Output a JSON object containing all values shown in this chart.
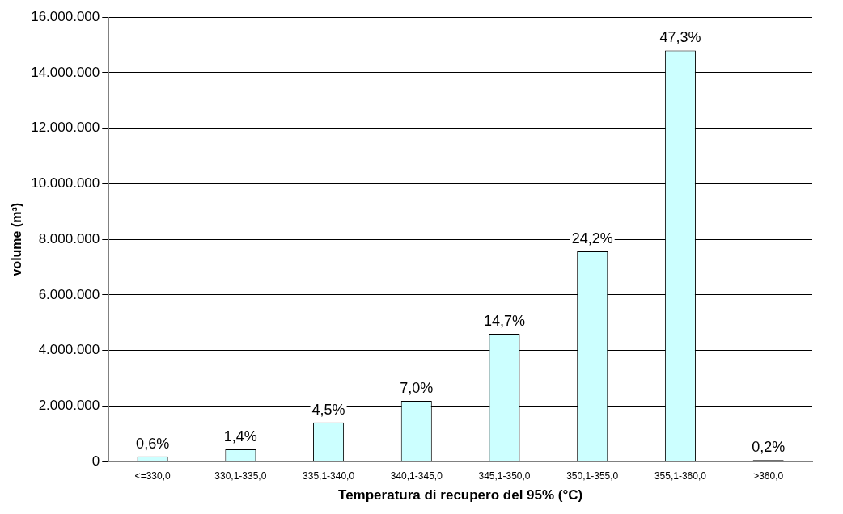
{
  "chart_data": {
    "type": "bar",
    "xlabel": "Temperatura di recupero del 95% (°C)",
    "ylabel": "volume (m³)",
    "categories": [
      "<=330,0",
      "330,1-335,0",
      "335,1-340,0",
      "340,1-345,0",
      "345,1-350,0",
      "350,1-355,0",
      "355,1-360,0",
      ">360,0"
    ],
    "values": [
      190000,
      440000,
      1410000,
      2190000,
      4600000,
      7570000,
      14800000,
      60000
    ],
    "annotations": [
      {
        "text": "0,6%",
        "x": "<=330,0",
        "y": 190000
      },
      {
        "text": "1,4%",
        "x": "330,1-335,0",
        "y": 440000
      },
      {
        "text": "4,5%",
        "x": "335,1-340,0",
        "y": 1410000
      },
      {
        "text": "7,0%",
        "x": "340,1-345,0",
        "y": 2190000
      },
      {
        "text": "14,7%",
        "x": "345,1-350,0",
        "y": 4600000
      },
      {
        "text": "24,2%",
        "x": "350,1-355,0",
        "y": 7570000
      },
      {
        "text": "47,3%",
        "x": "355,1-360,0",
        "y": 14800000
      },
      {
        "text": "0,2%",
        "x": ">360,0",
        "y": 60000
      }
    ],
    "color": "#ccffff",
    "ylim": [
      0,
      16000000
    ],
    "yticks": [
      {
        "value": 0,
        "label": "0"
      },
      {
        "value": 2000000,
        "label": "2.000.000"
      },
      {
        "value": 4000000,
        "label": "4.000.000"
      },
      {
        "value": 6000000,
        "label": "6.000.000"
      },
      {
        "value": 8000000,
        "label": "8.000.000"
      },
      {
        "value": 10000000,
        "label": "10.000.000"
      },
      {
        "value": 12000000,
        "label": "12.000.000"
      },
      {
        "value": 14000000,
        "label": "14.000.000"
      },
      {
        "value": 16000000,
        "label": "16.000.000"
      }
    ],
    "grid": "y",
    "legend": false
  }
}
